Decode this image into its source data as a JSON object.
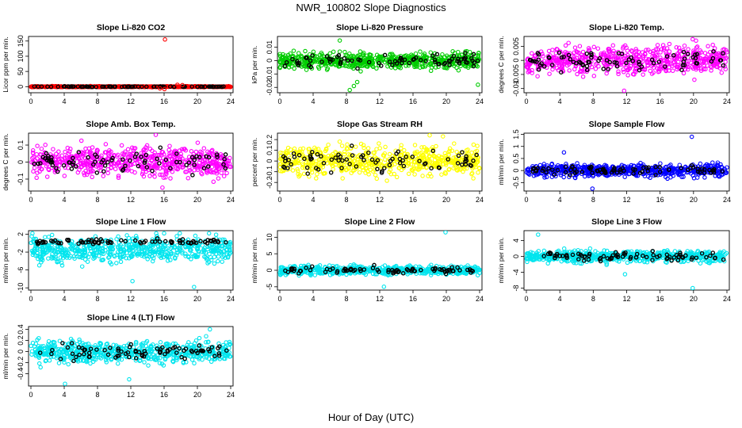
{
  "title": "NWR_100802  Slope Diagnostics",
  "xlabel": "Hour of Day (UTC)",
  "chart_data": [
    {
      "type": "scatter",
      "title": "Slope Li-820 CO2",
      "ylabel": "Licor ppm per min.",
      "color": "#ff0000",
      "xlim": [
        0,
        24
      ],
      "xticks": [
        0,
        4,
        8,
        12,
        16,
        20,
        24
      ],
      "ylim": [
        -20,
        165
      ],
      "yticks": [
        0,
        50,
        100,
        150
      ],
      "noise": {
        "sd": 1.0,
        "flag_sd": 0.6,
        "range": [
          -3,
          3
        ]
      },
      "outliers": [
        {
          "x": 16.1,
          "y": 155
        },
        {
          "x": 16.05,
          "y": -8
        },
        {
          "x": 17.6,
          "y": 6
        },
        {
          "x": 18.2,
          "y": 5
        },
        {
          "x": 15.5,
          "y": -6
        }
      ]
    },
    {
      "type": "scatter",
      "title": "Slope Li-820 Pressure",
      "ylabel": "kPa per min.",
      "color": "#00cc00",
      "xlim": [
        0,
        24
      ],
      "xticks": [
        0,
        4,
        8,
        12,
        16,
        20,
        24
      ],
      "ylim": [
        -0.024,
        0.018
      ],
      "yticks": [
        -0.02,
        -0.01,
        0,
        0.01
      ],
      "noise": {
        "sd": 0.004,
        "flag_sd": 0.003,
        "range": [
          -0.022,
          0.016
        ]
      },
      "outliers": [
        {
          "x": 8.4,
          "y": -0.022
        },
        {
          "x": 8.9,
          "y": -0.019
        },
        {
          "x": 9.3,
          "y": -0.016
        },
        {
          "x": 23.8,
          "y": -0.018
        },
        {
          "x": 7.2,
          "y": 0.015
        }
      ]
    },
    {
      "type": "scatter",
      "title": "Slope Li-820 Temp.",
      "ylabel": "degrees C per min.",
      "color": "#ff00ff",
      "xlim": [
        0,
        24
      ],
      "xticks": [
        0,
        4,
        8,
        12,
        16,
        20,
        24
      ],
      "ylim": [
        -0.0115,
        0.0085
      ],
      "yticks": [
        -0.01,
        -0.005,
        0,
        0.005
      ],
      "noise": {
        "sd": 0.0035,
        "flag_sd": 0.0025,
        "range": [
          -0.0105,
          0.0075
        ]
      },
      "outliers": [
        {
          "x": 11.7,
          "y": -0.0108
        },
        {
          "x": 19.9,
          "y": 0.0075
        },
        {
          "x": 20.3,
          "y": 0.007
        }
      ]
    },
    {
      "type": "scatter",
      "title": "Slope Amb. Box Temp.",
      "ylabel": "degrees C per min.",
      "color": "#ff00ff",
      "xlim": [
        0,
        24
      ],
      "xticks": [
        0,
        4,
        8,
        12,
        16,
        20,
        24
      ],
      "ylim": [
        -0.17,
        0.17
      ],
      "yticks": [
        -0.1,
        0,
        0.1
      ],
      "noise": {
        "sd": 0.06,
        "flag_sd": 0.045,
        "range": [
          -0.16,
          0.16
        ]
      },
      "outliers": [
        {
          "x": 15.0,
          "y": 0.16
        },
        {
          "x": 15.8,
          "y": -0.15
        }
      ]
    },
    {
      "type": "scatter",
      "title": "Slope Gas Stream RH",
      "ylabel": "percent per min.",
      "color": "#ffff00",
      "xlim": [
        0,
        24
      ],
      "xticks": [
        0,
        4,
        8,
        12,
        16,
        20,
        24
      ],
      "ylim": [
        -0.28,
        0.26
      ],
      "yticks": [
        -0.2,
        -0.1,
        0,
        0.1,
        0.2
      ],
      "noise": {
        "sd": 0.09,
        "flag_sd": 0.07,
        "range": [
          -0.25,
          0.24
        ]
      },
      "outliers": [
        {
          "x": 19.6,
          "y": 0.23
        },
        {
          "x": 18.0,
          "y": 0.24
        }
      ]
    },
    {
      "type": "scatter",
      "title": "Slope Sample Flow",
      "ylabel": "ml/min per min.",
      "color": "#0000ff",
      "xlim": [
        0,
        24
      ],
      "xticks": [
        0,
        4,
        8,
        12,
        16,
        20,
        24
      ],
      "ylim": [
        -0.85,
        1.55
      ],
      "yticks": [
        -0.5,
        0,
        0.5,
        1,
        1.5
      ],
      "noise": {
        "sd": 0.18,
        "flag_sd": 0.12,
        "range": [
          -0.7,
          0.8
        ]
      },
      "outliers": [
        {
          "x": 19.8,
          "y": 1.4
        },
        {
          "x": 7.9,
          "y": -0.75
        },
        {
          "x": 4.5,
          "y": 0.75
        }
      ]
    },
    {
      "type": "scatter",
      "title": "Slope Line 1 Flow",
      "ylabel": "ml/min per min.",
      "color": "#00e5ee",
      "xlim": [
        0,
        24
      ],
      "xticks": [
        0,
        4,
        8,
        12,
        16,
        20,
        24
      ],
      "ylim": [
        -10.5,
        2.8
      ],
      "yticks": [
        -10,
        -6,
        -2,
        2
      ],
      "noise": {
        "sd": 2.0,
        "flag_sd": 0.4,
        "center": -1.5,
        "flag_center": 0.3,
        "range": [
          -9,
          2.2
        ]
      },
      "outliers": [
        {
          "x": 12.2,
          "y": -8.5
        },
        {
          "x": 19.6,
          "y": -9.8
        }
      ]
    },
    {
      "type": "scatter",
      "title": "Slope Line 2 Flow",
      "ylabel": "ml/min per min.",
      "color": "#00e5ee",
      "xlim": [
        0,
        24
      ],
      "xticks": [
        0,
        4,
        8,
        12,
        16,
        20,
        24
      ],
      "ylim": [
        -6,
        12
      ],
      "yticks": [
        -5,
        0,
        5,
        10
      ],
      "noise": {
        "sd": 0.9,
        "flag_sd": 0.7,
        "range": [
          -3,
          3.5
        ]
      },
      "outliers": [
        {
          "x": 19.9,
          "y": 11.5
        },
        {
          "x": 12.5,
          "y": -5
        }
      ]
    },
    {
      "type": "scatter",
      "title": "Slope Line 3 Flow",
      "ylabel": "ml/min per min.",
      "color": "#00e5ee",
      "xlim": [
        0,
        24
      ],
      "xticks": [
        0,
        4,
        8,
        12,
        16,
        20,
        24
      ],
      "ylim": [
        -8.5,
        6.5
      ],
      "yticks": [
        -8,
        -4,
        0,
        4
      ],
      "noise": {
        "sd": 1.0,
        "flag_sd": 0.8,
        "range": [
          -3.5,
          4
        ]
      },
      "outliers": [
        {
          "x": 1.4,
          "y": 5.5
        },
        {
          "x": 19.9,
          "y": -8
        },
        {
          "x": 11.8,
          "y": -4.5
        }
      ]
    },
    {
      "type": "scatter",
      "title": "Slope Line 4 (LT) Flow",
      "ylabel": "ml/min per min.",
      "color": "#00e5ee",
      "xlim": [
        0,
        24
      ],
      "xticks": [
        0,
        4,
        8,
        12,
        16,
        20,
        24
      ],
      "ylim": [
        -0.62,
        0.45
      ],
      "yticks": [
        -0.4,
        -0.2,
        0,
        0.2,
        0.4
      ],
      "noise": {
        "sd": 0.14,
        "flag_sd": 0.1,
        "range": [
          -0.45,
          0.42
        ]
      },
      "outliers": [
        {
          "x": 4.1,
          "y": -0.58
        },
        {
          "x": 11.8,
          "y": -0.5
        },
        {
          "x": 21.5,
          "y": 0.4
        }
      ]
    }
  ]
}
